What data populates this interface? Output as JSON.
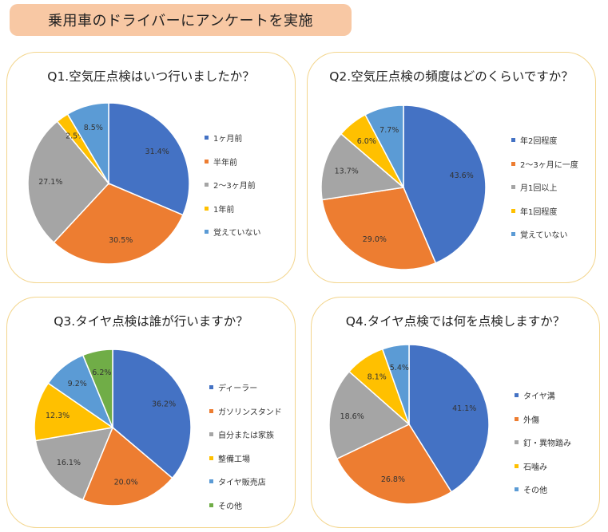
{
  "header": {
    "title": "乗用車のドライバーにアンケートを実施"
  },
  "chart_data": [
    {
      "type": "pie",
      "title": "Q1.空気圧点検はいつ行いましたか？",
      "categories": [
        "1ヶ月前",
        "半年前",
        "2～3ヶ月前",
        "1年前",
        "覚えていない"
      ],
      "values": [
        31.4,
        30.5,
        27.1,
        2.5,
        8.5
      ],
      "labels": [
        "31.4%",
        "30.5%",
        "27.1%",
        "2.5%",
        "8.5%"
      ],
      "colors": [
        "#4472c4",
        "#ed7d31",
        "#a5a5a5",
        "#ffc000",
        "#5b9bd5"
      ],
      "legend": "right"
    },
    {
      "type": "pie",
      "title": "Q2.空気圧点検の頻度はどのくらいですか？",
      "categories": [
        "年2回程度",
        "2～3ヶ月に一度",
        "月1回以上",
        "年1回程度",
        "覚えていない"
      ],
      "values": [
        43.6,
        29.0,
        13.7,
        6.0,
        7.7
      ],
      "labels": [
        "43.6%",
        "29.0%",
        "13.7%",
        "6.0%",
        "7.7%"
      ],
      "colors": [
        "#4472c4",
        "#ed7d31",
        "#a5a5a5",
        "#ffc000",
        "#5b9bd5"
      ],
      "legend": "right"
    },
    {
      "type": "pie",
      "title": "Q3.タイヤ点検は誰が行いますか？",
      "categories": [
        "ディーラー",
        "ガソリンスタンド",
        "自分または家族",
        "整備工場",
        "タイヤ販売店",
        "その他"
      ],
      "values": [
        36.2,
        20.0,
        16.1,
        12.3,
        9.2,
        6.2
      ],
      "labels": [
        "36.2%",
        "20.0%",
        "16.1%",
        "12.3%",
        "9.2%",
        "6.2%"
      ],
      "colors": [
        "#4472c4",
        "#ed7d31",
        "#a5a5a5",
        "#ffc000",
        "#5b9bd5",
        "#70ad47"
      ],
      "legend": "right"
    },
    {
      "type": "pie",
      "title": "Q4.タイヤ点検では何を点検しますか？",
      "categories": [
        "タイヤ溝",
        "外傷",
        "釘・異物踏み",
        "石噛み",
        "その他"
      ],
      "values": [
        41.1,
        26.8,
        18.6,
        8.1,
        5.4
      ],
      "labels": [
        "41.1%",
        "26.8%",
        "18.6%",
        "8.1%",
        "5.4%"
      ],
      "colors": [
        "#4472c4",
        "#ed7d31",
        "#a5a5a5",
        "#ffc000",
        "#5b9bd5"
      ],
      "legend": "right"
    }
  ]
}
